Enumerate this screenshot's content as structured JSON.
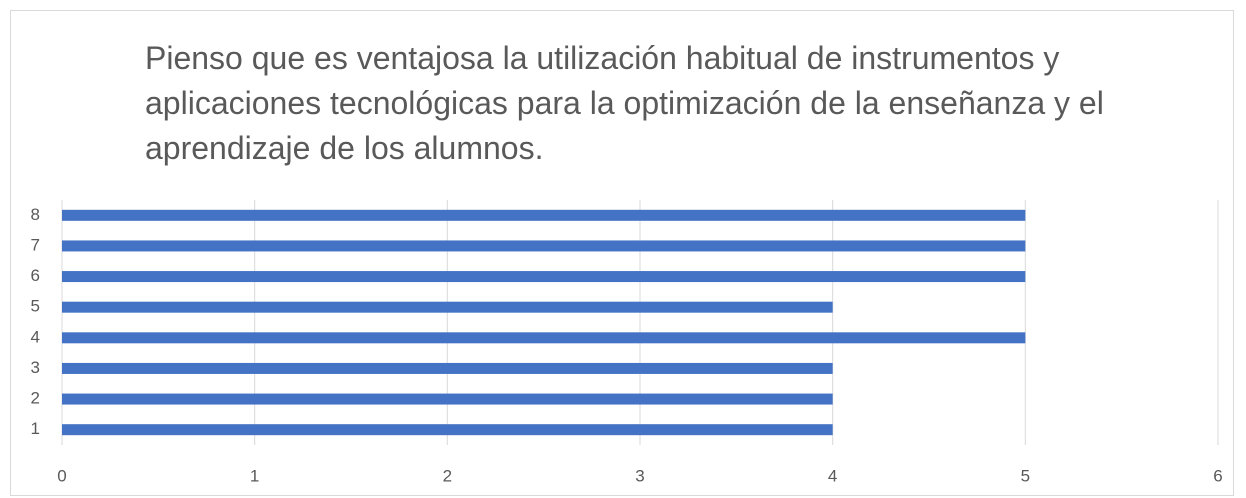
{
  "chart_data": {
    "type": "bar",
    "orientation": "horizontal",
    "title": "Pienso que es ventajosa la utilización habitual de instrumentos y aplicaciones tecnológicas para la optimización de la enseñanza y el aprendizaje de los alumnos.",
    "categories": [
      "1",
      "2",
      "3",
      "4",
      "5",
      "6",
      "7",
      "8"
    ],
    "values": [
      4,
      4,
      4,
      5,
      4,
      5,
      5,
      5
    ],
    "color": "#4472c4",
    "xlim": [
      0,
      6
    ],
    "xticks": [
      0,
      1,
      2,
      3,
      4,
      5,
      6
    ],
    "grid": true
  }
}
